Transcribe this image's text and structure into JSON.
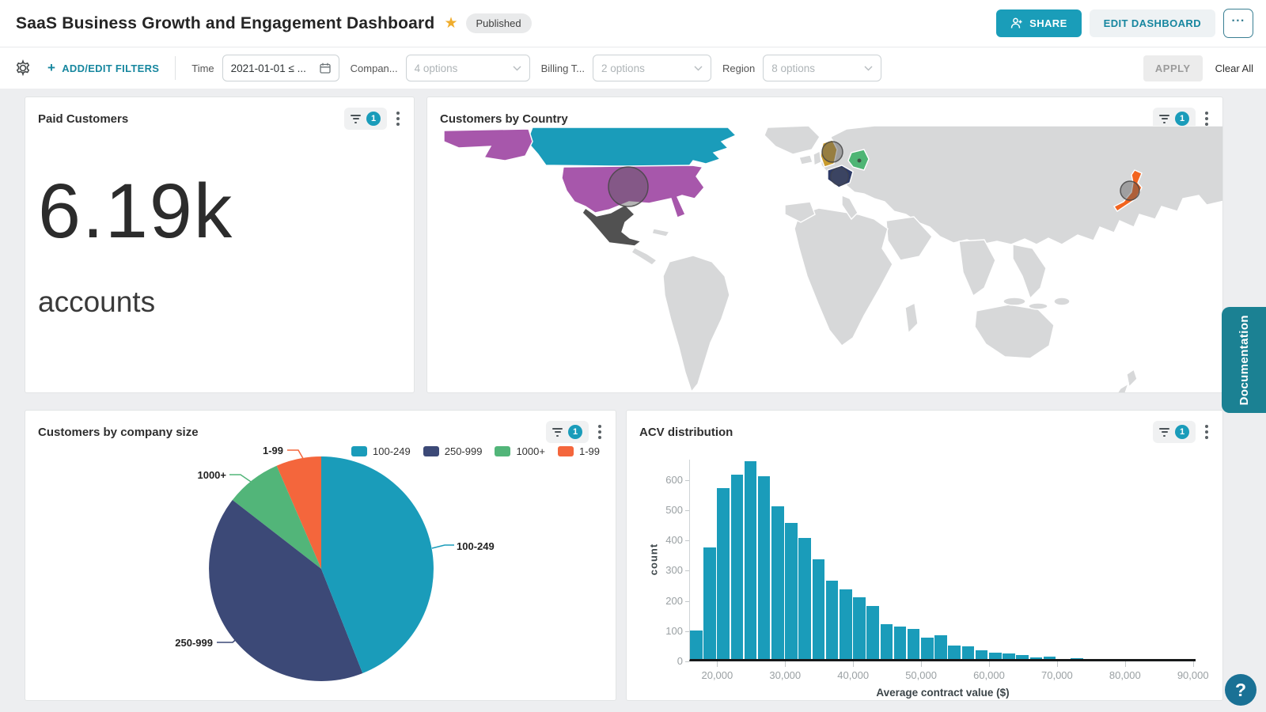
{
  "header": {
    "title": "SaaS Business Growth and Engagement Dashboard",
    "status_badge": "Published",
    "share_label": "SHARE",
    "edit_label": "EDIT DASHBOARD"
  },
  "icons": {
    "star": "★",
    "plus": "+",
    "more": "···",
    "help": "?"
  },
  "filter_bar": {
    "add_edit_label": "ADD/EDIT FILTERS",
    "apply_label": "APPLY",
    "clear_all_label": "Clear All",
    "filters": [
      {
        "label": "Time",
        "value": "2021-01-01 ≤ ...",
        "type": "date"
      },
      {
        "label": "Compan...",
        "value": "4 options",
        "type": "select"
      },
      {
        "label": "Billing T...",
        "value": "2 options",
        "type": "select"
      },
      {
        "label": "Region",
        "value": "8 options",
        "type": "select"
      }
    ]
  },
  "cards": {
    "paid_customers": {
      "title": "Paid Customers",
      "filter_count": "1",
      "value": "6.19k",
      "unit": "accounts"
    },
    "customers_by_country": {
      "title": "Customers by Country",
      "filter_count": "1"
    },
    "company_size": {
      "title": "Customers by company size",
      "filter_count": "1"
    },
    "acv": {
      "title": "ACV distribution",
      "filter_count": "1"
    }
  },
  "chart_data": [
    {
      "id": "customers_by_country",
      "type": "heatmap",
      "subtype": "choropleth-world-map",
      "title": "Customers by Country",
      "regions": [
        {
          "id": "canada",
          "label": "Canada",
          "color": "#1a9cba"
        },
        {
          "id": "usa",
          "label": "United States",
          "color": "#a757ab",
          "bubble": true
        },
        {
          "id": "mexico",
          "label": "Mexico",
          "color": "#515151"
        },
        {
          "id": "uk",
          "label": "United Kingdom",
          "color": "#c99b2d",
          "bubble": true
        },
        {
          "id": "france",
          "label": "France",
          "color": "#2d3a66",
          "bubble": true
        },
        {
          "id": "germany",
          "label": "Germany",
          "color": "#4eb574",
          "bubble": true
        },
        {
          "id": "japan",
          "label": "Japan",
          "color": "#f2641f",
          "bubble": true
        }
      ],
      "other_land_color": "#d7d8d9"
    },
    {
      "id": "customers_by_company_size",
      "type": "pie",
      "title": "Customers by company size",
      "labels": [
        "100-249",
        "250-999",
        "1000+",
        "1-99"
      ],
      "values": [
        44,
        41.5,
        8,
        6.5
      ],
      "colors": [
        "#1a9cba",
        "#3c4977",
        "#52b579",
        "#f4663c"
      ],
      "legend_position": "top-right"
    },
    {
      "id": "acv_distribution",
      "type": "bar",
      "subtype": "histogram",
      "title": "ACV distribution",
      "xlabel": "Average contract value ($)",
      "ylabel": "count",
      "bin_start": 16000,
      "bin_width": 2000,
      "values": [
        95,
        370,
        565,
        610,
        655,
        605,
        505,
        450,
        400,
        330,
        260,
        230,
        205,
        175,
        115,
        107,
        100,
        70,
        78,
        45,
        42,
        30,
        20,
        18,
        12,
        5,
        8,
        0,
        3
      ],
      "x_tick_values": [
        20000,
        30000,
        40000,
        50000,
        60000,
        70000,
        80000,
        90000
      ],
      "x_ticks": [
        "20,000",
        "30,000",
        "40,000",
        "50,000",
        "60,000",
        "70,000",
        "80,000",
        "90,000"
      ],
      "y_ticks": [
        0,
        100,
        200,
        300,
        400,
        500,
        600
      ],
      "xlim": [
        16000,
        90500
      ],
      "ylim": [
        0,
        668
      ],
      "bar_color": "#1a9cba",
      "grid": false
    }
  ],
  "side": {
    "documentation_label": "Documentation"
  }
}
